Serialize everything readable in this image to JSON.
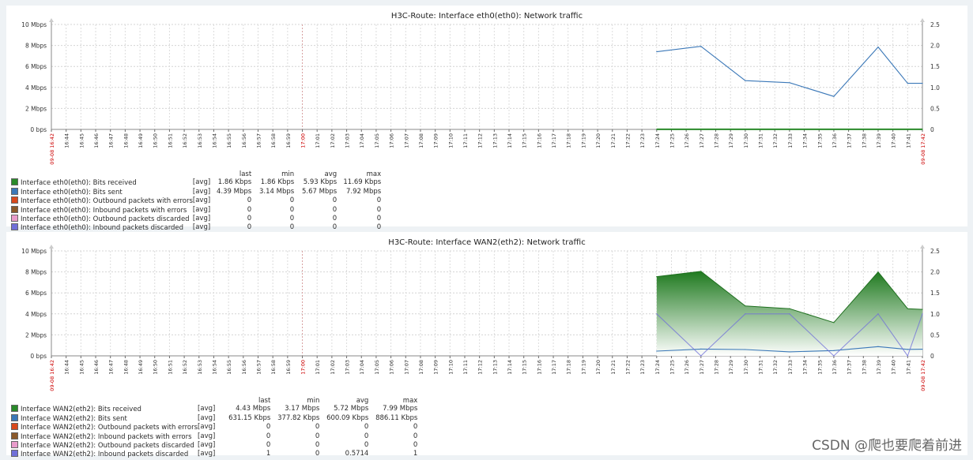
{
  "x_ticks": [
    "09-08 16:42",
    "16:44",
    "16:45",
    "16:46",
    "16:47",
    "16:48",
    "16:49",
    "16:50",
    "16:51",
    "16:52",
    "16:53",
    "16:54",
    "16:55",
    "16:56",
    "16:57",
    "16:58",
    "16:59",
    "17:00",
    "17:01",
    "17:02",
    "17:03",
    "17:04",
    "17:05",
    "17:06",
    "17:07",
    "17:08",
    "17:09",
    "17:10",
    "17:11",
    "17:12",
    "17:13",
    "17:14",
    "17:15",
    "17:16",
    "17:17",
    "17:18",
    "17:19",
    "17:20",
    "17:21",
    "17:22",
    "17:23",
    "17:24",
    "17:25",
    "17:26",
    "17:27",
    "17:28",
    "17:29",
    "17:30",
    "17:31",
    "17:32",
    "17:33",
    "17:34",
    "17:35",
    "17:36",
    "17:37",
    "17:38",
    "17:39",
    "17:40",
    "17:41",
    "09-08 17:42"
  ],
  "legend_headers": {
    "last": "last",
    "min": "min",
    "avg": "avg",
    "max": "max"
  },
  "watermark": "CSDN @爬也要爬着前进",
  "colors": {
    "received": "#2a8a2a",
    "sent": "#3b78b8",
    "out_err": "#d9491c",
    "in_err": "#8b5a2b",
    "out_disc": "#e99ccb",
    "in_disc": "#7070d8",
    "red_label": "#cc0000"
  },
  "chart_data": [
    {
      "type": "line",
      "title": "H3C-Route: Interface eth0(eth0): Network traffic",
      "yticks_left": [
        "10 Mbps",
        "8 Mbps",
        "6 Mbps",
        "4 Mbps",
        "2 Mbps",
        "0 bps"
      ],
      "yticks_right": [
        "2.5",
        "2.0",
        "1.5",
        "1.0",
        "0.5",
        "0"
      ],
      "ylim": [
        0,
        10
      ],
      "ylim_right": [
        0,
        2.5
      ],
      "x": [
        "17:24",
        "17:27",
        "17:30",
        "17:33",
        "17:36",
        "17:39",
        "17:41",
        "09-08 17:42"
      ],
      "series": [
        {
          "name": "Interface eth0(eth0): Bits received",
          "func": "[avg]",
          "last": "1.86 Kbps",
          "min": "1.86 Kbps",
          "avg": "5.93 Kbps",
          "max": "11.69 Kbps",
          "color_key": "received",
          "style": "line",
          "values": [
            0.01,
            0.01,
            0.01,
            0.01,
            0.01,
            0.01,
            0.01,
            0.01
          ]
        },
        {
          "name": "Interface eth0(eth0): Bits sent",
          "func": "[avg]",
          "last": "4.39 Mbps",
          "min": "3.14 Mbps",
          "avg": "5.67 Mbps",
          "max": "7.92 Mbps",
          "color_key": "sent",
          "style": "line",
          "values": [
            7.4,
            7.92,
            4.65,
            4.45,
            3.14,
            7.85,
            4.39,
            4.39
          ]
        },
        {
          "name": "Interface eth0(eth0): Outbound packets with errors",
          "func": "[avg]",
          "last": "0",
          "min": "0",
          "avg": "0",
          "max": "0",
          "color_key": "out_err"
        },
        {
          "name": "Interface eth0(eth0): Inbound packets with errors",
          "func": "[avg]",
          "last": "0",
          "min": "0",
          "avg": "0",
          "max": "0",
          "color_key": "in_err"
        },
        {
          "name": "Interface eth0(eth0): Outbound packets discarded",
          "func": "[avg]",
          "last": "0",
          "min": "0",
          "avg": "0",
          "max": "0",
          "color_key": "out_disc"
        },
        {
          "name": "Interface eth0(eth0): Inbound packets discarded",
          "func": "[avg]",
          "last": "0",
          "min": "0",
          "avg": "0",
          "max": "0",
          "color_key": "in_disc"
        }
      ]
    },
    {
      "type": "area",
      "title": "H3C-Route: Interface WAN2(eth2): Network traffic",
      "yticks_left": [
        "10 Mbps",
        "8 Mbps",
        "6 Mbps",
        "4 Mbps",
        "2 Mbps",
        "0 bps"
      ],
      "yticks_right": [
        "2.5",
        "2.0",
        "1.5",
        "1.0",
        "0.5",
        "0"
      ],
      "ylim": [
        0,
        10
      ],
      "ylim_right": [
        0,
        2.5
      ],
      "x": [
        "17:24",
        "17:27",
        "17:30",
        "17:33",
        "17:36",
        "17:39",
        "17:41",
        "09-08 17:42"
      ],
      "series": [
        {
          "name": "Interface WAN2(eth2): Bits received",
          "func": "[avg]",
          "last": "4.43 Mbps",
          "min": "3.17 Mbps",
          "avg": "5.72 Mbps",
          "max": "7.99 Mbps",
          "color_key": "received",
          "style": "area",
          "values": [
            7.55,
            8.05,
            4.75,
            4.5,
            3.17,
            7.99,
            4.5,
            4.43
          ]
        },
        {
          "name": "Interface WAN2(eth2): Bits sent",
          "func": "[avg]",
          "last": "631.15 Kbps",
          "min": "377.82 Kbps",
          "avg": "600.09 Kbps",
          "max": "886.11 Kbps",
          "color_key": "sent",
          "style": "line",
          "values": [
            0.45,
            0.65,
            0.6,
            0.38,
            0.5,
            0.88,
            0.62,
            0.63
          ]
        },
        {
          "name": "Interface WAN2(eth2): Outbound packets with errors",
          "func": "[avg]",
          "last": "0",
          "min": "0",
          "avg": "0",
          "max": "0",
          "color_key": "out_err"
        },
        {
          "name": "Interface WAN2(eth2): Inbound packets with errors",
          "func": "[avg]",
          "last": "0",
          "min": "0",
          "avg": "0",
          "max": "0",
          "color_key": "in_err"
        },
        {
          "name": "Interface WAN2(eth2): Outbound packets discarded",
          "func": "[avg]",
          "last": "0",
          "min": "0",
          "avg": "0",
          "max": "0",
          "color_key": "out_disc"
        },
        {
          "name": "Interface WAN2(eth2): Inbound packets discarded",
          "func": "[avg]",
          "last": "1",
          "min": "0",
          "avg": "0.5714",
          "max": "1",
          "color_key": "in_disc",
          "axis": "right",
          "style": "line",
          "values": [
            1,
            0,
            1,
            1,
            0,
            1,
            0,
            1
          ]
        }
      ]
    }
  ]
}
